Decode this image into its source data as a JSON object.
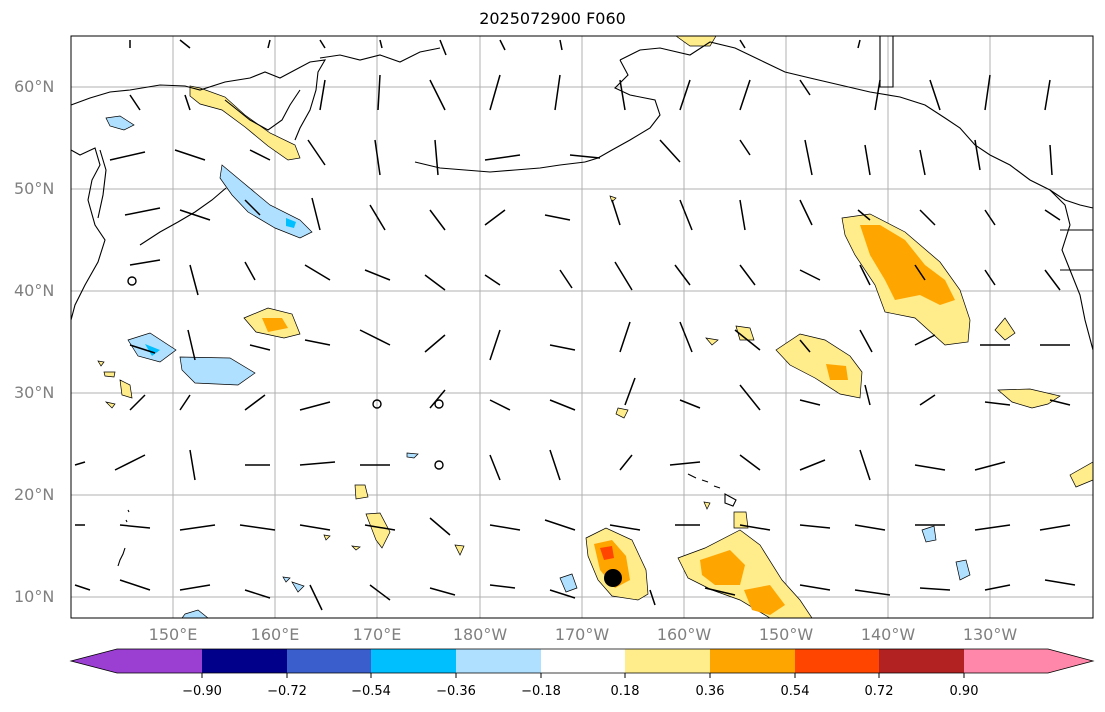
{
  "title": "2025072900 F060",
  "lat_labels": [
    "60°N",
    "50°N",
    "40°N",
    "30°N",
    "20°N",
    "10°N"
  ],
  "lon_labels": [
    "150°E",
    "160°E",
    "170°E",
    "180°W",
    "170°W",
    "160°W",
    "150°W",
    "140°W",
    "130°W"
  ],
  "colorbar": {
    "ticks": [
      "−0.90",
      "−0.72",
      "−0.54",
      "−0.36",
      "−0.18",
      "0.18",
      "0.36",
      "0.54",
      "0.72",
      "0.90"
    ],
    "colors": [
      "#9a3fd2",
      "#00008b",
      "#3a5fcd",
      "#00bfff",
      "#b0e0ff",
      "#ffffff",
      "#ffec8b",
      "#ffa500",
      "#ff4500",
      "#b22222",
      "#ff88aa"
    ]
  },
  "colors": {
    "grid": "#b0b0b0",
    "label": "#808080",
    "neg_light": "#b0e0ff",
    "neg_mid": "#00bfff",
    "pos_light": "#ffec8b",
    "pos_mid": "#ffa500",
    "pos_high": "#ff4500"
  }
}
